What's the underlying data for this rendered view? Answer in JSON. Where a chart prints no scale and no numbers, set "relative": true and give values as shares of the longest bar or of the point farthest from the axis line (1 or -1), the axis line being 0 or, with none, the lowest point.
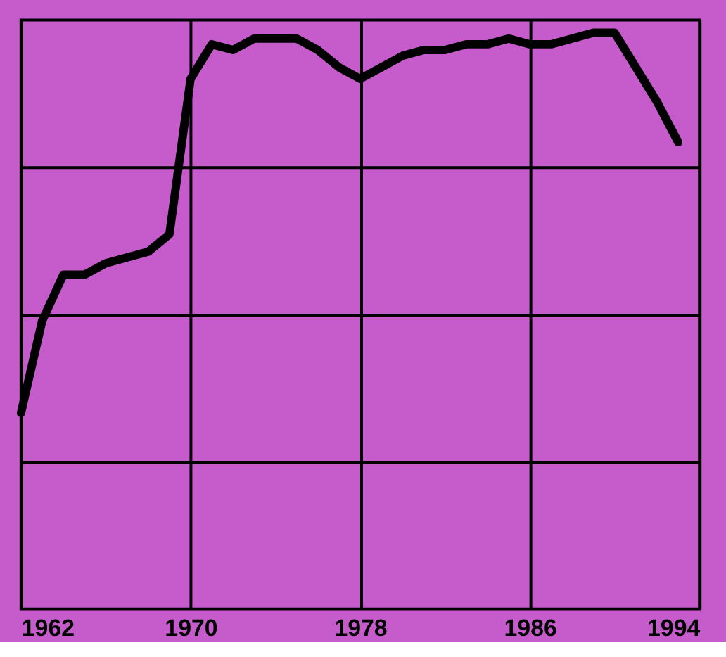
{
  "chart_data": {
    "type": "line",
    "relative": true,
    "x": [
      1962,
      1963,
      1964,
      1965,
      1966,
      1967,
      1968,
      1969,
      1970,
      1971,
      1972,
      1973,
      1974,
      1975,
      1976,
      1977,
      1978,
      1979,
      1980,
      1981,
      1982,
      1983,
      1984,
      1985,
      1986,
      1987,
      1988,
      1989,
      1990,
      1991,
      1992,
      1993
    ],
    "series": [
      {
        "color": "#000000",
        "values": [
          0.34,
          0.5,
          0.58,
          0.58,
          0.6,
          0.61,
          0.62,
          0.65,
          0.92,
          0.98,
          0.97,
          0.99,
          0.99,
          0.99,
          0.97,
          0.94,
          0.92,
          0.94,
          0.96,
          0.97,
          0.97,
          0.98,
          0.98,
          0.99,
          0.98,
          0.98,
          0.99,
          1.0,
          1.0,
          0.94,
          0.88,
          0.81
        ]
      }
    ],
    "xlim": [
      1962,
      1994
    ],
    "xticks": [
      1962,
      1970,
      1978,
      1986,
      1994
    ],
    "grid": true,
    "legend": false,
    "marker": "none",
    "line_style": "solid",
    "tick_labels": "x"
  }
}
